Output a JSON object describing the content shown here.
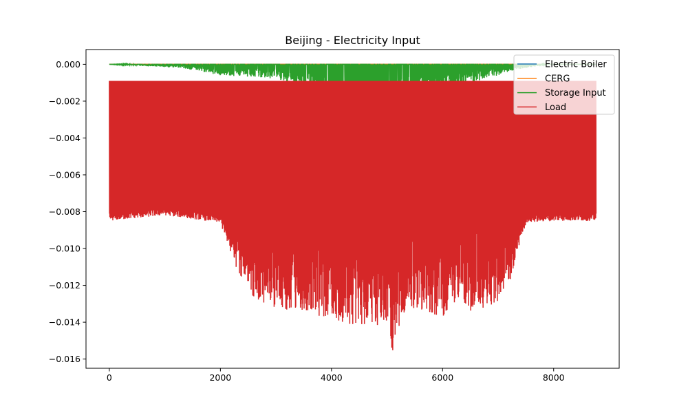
{
  "chart_data": {
    "type": "line",
    "title": "Beijing - Electricity Input",
    "xlabel": "",
    "ylabel": "",
    "xlim": [
      -420,
      9180
    ],
    "ylim": [
      -0.0165,
      0.0008
    ],
    "x_ticks": [
      0,
      2000,
      4000,
      6000,
      8000
    ],
    "x_tick_labels": [
      "0",
      "2000",
      "4000",
      "6000",
      "8000"
    ],
    "y_ticks": [
      0.0,
      -0.002,
      -0.004,
      -0.006,
      -0.008,
      -0.01,
      -0.012,
      -0.014,
      -0.016
    ],
    "y_tick_labels": [
      "0.000",
      "−0.002",
      "−0.004",
      "−0.006",
      "−0.008",
      "−0.010",
      "−0.012",
      "−0.014",
      "−0.016"
    ],
    "grid": false,
    "legend_position": "top-right",
    "hours": 8760,
    "series": [
      {
        "name": "Electric Boiler",
        "color": "#1f77b4",
        "summary": "constant 0 over all hours",
        "points": [
          [
            0,
            0
          ],
          [
            8760,
            0
          ]
        ]
      },
      {
        "name": "CERG",
        "color": "#ff7f0e",
        "summary": "constant 0 over all hours",
        "points": [
          [
            0,
            0
          ],
          [
            8760,
            0
          ]
        ]
      },
      {
        "name": "Storage Input",
        "color": "#2ca02c",
        "summary": "0 in winter, dips down to about -0.0025 in summer months (hours ~1300-7900)",
        "x_profile": [
          0,
          1300,
          2000,
          3000,
          3500,
          4000,
          4500,
          4800,
          5000,
          5500,
          6000,
          6500,
          7000,
          7300,
          7900,
          8760
        ],
        "trough_envelope": [
          0,
          -0.0002,
          -0.0006,
          -0.0008,
          -0.0012,
          -0.0018,
          -0.0022,
          -0.0024,
          -0.0022,
          -0.0016,
          -0.0013,
          -0.001,
          -0.0006,
          -0.0003,
          0,
          0
        ]
      },
      {
        "name": "Load",
        "color": "#d62728",
        "summary": "hourly load oscillating between about -0.0009 and a daily minimum; deepest near hour 5100 at about -0.0157",
        "upper_level": -0.0009,
        "x_profile": [
          0,
          1000,
          2000,
          2200,
          2500,
          3000,
          3500,
          4000,
          4300,
          4700,
          5000,
          5100,
          5300,
          5500,
          6000,
          6300,
          6500,
          7000,
          7200,
          7500,
          8000,
          8760
        ],
        "trough_envelope": [
          -0.0083,
          -0.008,
          -0.0084,
          -0.0105,
          -0.0125,
          -0.0133,
          -0.0135,
          -0.0138,
          -0.0143,
          -0.0142,
          -0.0141,
          -0.0157,
          -0.0136,
          -0.0133,
          -0.0137,
          -0.0126,
          -0.0135,
          -0.0129,
          -0.0119,
          -0.0084,
          -0.0083,
          -0.0083
        ]
      }
    ]
  }
}
